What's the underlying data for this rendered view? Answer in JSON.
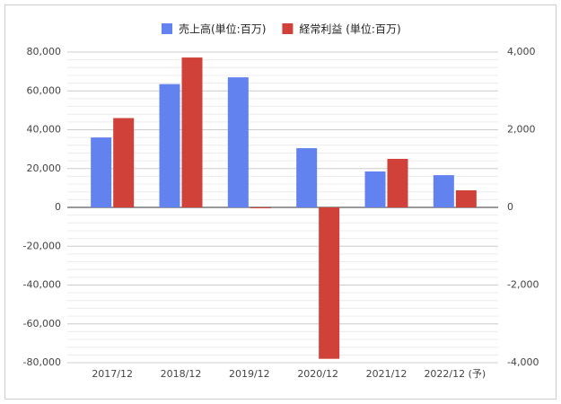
{
  "chart_data": {
    "type": "bar",
    "categories": [
      "2017/12",
      "2018/12",
      "2019/12",
      "2020/12",
      "2021/12",
      "2022/12 (予)"
    ],
    "series": [
      {
        "name": "売上高(単位:百万)",
        "color": "#6282f0",
        "values": [
          36000,
          63500,
          67000,
          30500,
          18500,
          16600
        ]
      },
      {
        "name": "経常利益 (単位:百万)",
        "color": "#d04239",
        "axis": "y2",
        "values": [
          2300,
          3860,
          -20,
          -3900,
          1250,
          440
        ]
      }
    ],
    "ylim": [
      -80000,
      80000
    ],
    "yticks": [
      {
        "value": -80000,
        "label": "-80,000"
      },
      {
        "value": -60000,
        "label": "-60,000"
      },
      {
        "value": -40000,
        "label": "-40,000"
      },
      {
        "value": -20000,
        "label": "-20,000"
      },
      0,
      {
        "value": 20000,
        "label": "20,000"
      },
      {
        "value": 40000,
        "label": "40,000"
      },
      {
        "value": 60000,
        "label": "60,000"
      },
      {
        "value": 80000,
        "label": "80,000"
      }
    ],
    "y2lim": [
      -4000,
      4000
    ],
    "y2ticks": [
      {
        "value": -4000,
        "label": "-4,000"
      },
      {
        "value": -2000,
        "label": "-2,000"
      },
      0,
      {
        "value": 2000,
        "label": "2,000"
      },
      {
        "value": 4000,
        "label": "4,000"
      }
    ],
    "grid": true,
    "minor_grid": true,
    "legend": "top"
  }
}
